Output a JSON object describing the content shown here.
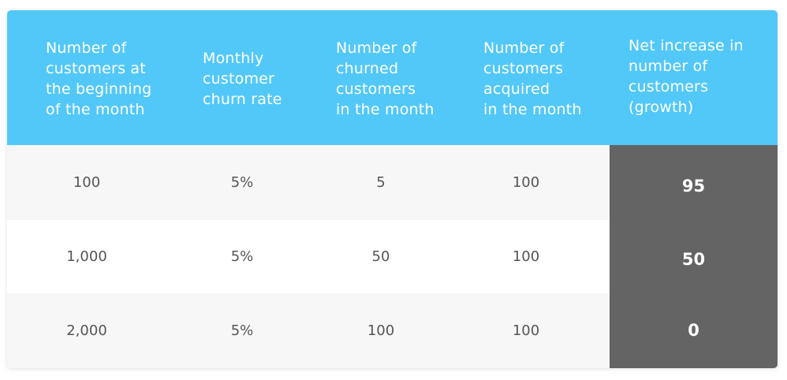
{
  "colors": {
    "header_bg": "#52c8f9",
    "row_light": "#f7f7f7",
    "row_white": "#ffffff",
    "highlight_column": "#646464"
  },
  "headers": [
    "Number of\ncustomers at\nthe beginning\nof the month",
    "Monthly\ncustomer\nchurn rate",
    "Number of\nchurned\ncustomers\nin the month",
    "Number of\ncustomers\nacquired\nin the month",
    "Net increase in\nnumber of\ncustomers\n(growth)"
  ],
  "rows": [
    {
      "start_customers": "100",
      "churn_rate": "5%",
      "churned": "5",
      "acquired": "100",
      "net_increase": "95"
    },
    {
      "start_customers": "1,000",
      "churn_rate": "5%",
      "churned": "50",
      "acquired": "100",
      "net_increase": "50"
    },
    {
      "start_customers": "2,000",
      "churn_rate": "5%",
      "churned": "100",
      "acquired": "100",
      "net_increase": "0"
    }
  ]
}
